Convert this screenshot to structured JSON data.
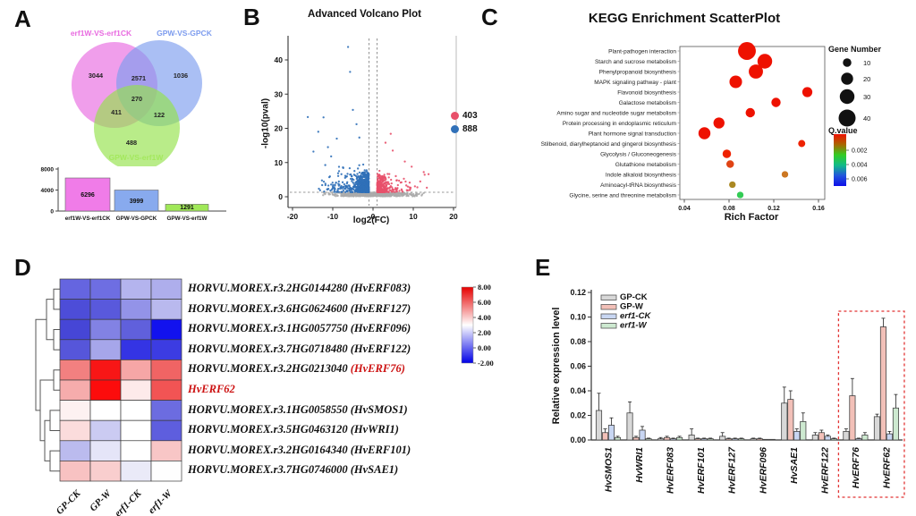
{
  "panel_labels": {
    "a": "A",
    "b": "B",
    "c": "C",
    "d": "D",
    "e": "E"
  },
  "chart_data": [
    {
      "id": "A-venn",
      "type": "venn",
      "sets": [
        {
          "name": "erf1W-VS-erf1CK",
          "color": "#e86ae0"
        },
        {
          "name": "GPW-VS-GPCK",
          "color": "#7d9cee"
        },
        {
          "name": "GPW-VS-erf1W",
          "color": "#93e24a"
        }
      ],
      "regions": [
        {
          "sets": [
            "erf1W-VS-erf1CK"
          ],
          "value": 3044
        },
        {
          "sets": [
            "erf1W-VS-erf1CK",
            "GPW-VS-GPCK"
          ],
          "value": 2571
        },
        {
          "sets": [
            "GPW-VS-GPCK"
          ],
          "value": 1036
        },
        {
          "sets": [
            "erf1W-VS-erf1CK",
            "GPW-VS-GPCK",
            "GPW-VS-erf1W"
          ],
          "value": 270
        },
        {
          "sets": [
            "erf1W-VS-erf1CK",
            "GPW-VS-erf1W"
          ],
          "value": 411
        },
        {
          "sets": [
            "GPW-VS-GPCK",
            "GPW-VS-erf1W"
          ],
          "value": 122
        },
        {
          "sets": [
            "GPW-VS-erf1W"
          ],
          "value": 488
        }
      ]
    },
    {
      "id": "A-bar",
      "type": "bar",
      "categories": [
        "erf1W-VS-erf1CK",
        "GPW-VS-GPCK",
        "GPW-VS-erf1W"
      ],
      "values": [
        6296,
        3999,
        1291
      ],
      "colors": [
        "#f07ce8",
        "#88aaee",
        "#a0e858"
      ],
      "yticks": [
        0,
        4000,
        8000
      ],
      "ylim": [
        0,
        8000
      ]
    },
    {
      "id": "B-volcano",
      "type": "scatter",
      "title": "Advanced Volcano Plot",
      "xlabel": "log2(FC)",
      "ylabel": "-log10(pval)",
      "xlim": [
        -22,
        22
      ],
      "ylim": [
        0,
        46
      ],
      "xticks": [
        -20,
        -10,
        0,
        10,
        20
      ],
      "yticks": [
        0,
        10,
        20,
        30,
        40
      ],
      "thresholds": {
        "vlines": [
          -1,
          1
        ],
        "hline": 1.3
      },
      "legend": [
        {
          "label": "403",
          "color": "#e8506a",
          "count": 403
        },
        {
          "label": "888",
          "color": "#3070b8",
          "count": 888
        }
      ],
      "gray_color": "#ababab",
      "up_count": 403,
      "down_count": 888
    },
    {
      "id": "C-kegg",
      "type": "scatter",
      "title": "KEGG Enrichment ScatterPlot",
      "xlabel": "Rich Factor",
      "xticks": [
        0.04,
        0.08,
        0.12,
        0.16
      ],
      "xlim": [
        0.03,
        0.17
      ],
      "size_legend": {
        "title": "Gene Number",
        "values": [
          10,
          20,
          30,
          40
        ]
      },
      "color_legend": {
        "title": "Q.value",
        "ticks": [
          0.002,
          0.004,
          0.006
        ],
        "gradient": [
          "#ee1100",
          "#aa6600",
          "#33cc22",
          "#11bb88",
          "#2255dd",
          "#0f0fe8"
        ]
      },
      "pathways": [
        {
          "name": "Plant-pathogen interaction",
          "rich_factor": 0.096,
          "gene_number": 44,
          "color": "#ee1100"
        },
        {
          "name": "Starch and sucrose metabolism",
          "rich_factor": 0.112,
          "gene_number": 30,
          "color": "#ee1100"
        },
        {
          "name": "Phenylpropanoid biosynthesis",
          "rich_factor": 0.104,
          "gene_number": 28,
          "color": "#ee1100"
        },
        {
          "name": "MAPK signaling pathway - plant",
          "rich_factor": 0.086,
          "gene_number": 22,
          "color": "#ee1100"
        },
        {
          "name": "Flavonoid biosynthesis",
          "rich_factor": 0.15,
          "gene_number": 14,
          "color": "#ee1100"
        },
        {
          "name": "Galactose metabolism",
          "rich_factor": 0.122,
          "gene_number": 12,
          "color": "#ee1100"
        },
        {
          "name": "Amino sugar and nucleotide sugar metabolism",
          "rich_factor": 0.099,
          "gene_number": 12,
          "color": "#ee1100"
        },
        {
          "name": "Protein processing in endoplasmic reticulum",
          "rich_factor": 0.071,
          "gene_number": 17,
          "color": "#ee1100"
        },
        {
          "name": "Plant hormone signal transduction",
          "rich_factor": 0.058,
          "gene_number": 20,
          "color": "#ee1100"
        },
        {
          "name": "Stilbenoid, diarylheptanoid and gingerol biosynthesis",
          "rich_factor": 0.145,
          "gene_number": 7,
          "color": "#ee2200"
        },
        {
          "name": "Glycolysis / Gluconeogenesis",
          "rich_factor": 0.078,
          "gene_number": 10,
          "color": "#ee2200"
        },
        {
          "name": "Glutathione metabolism",
          "rich_factor": 0.081,
          "gene_number": 8,
          "color": "#e04414"
        },
        {
          "name": "Indole alkaloid biosynthesis",
          "rich_factor": 0.13,
          "gene_number": 6,
          "color": "#cc7722"
        },
        {
          "name": "Aminoacyl-tRNA biosynthesis",
          "rich_factor": 0.083,
          "gene_number": 6,
          "color": "#aa8822"
        },
        {
          "name": "Glycine, serine and threonine metabolism",
          "rich_factor": 0.09,
          "gene_number": 6,
          "color": "#33cc55"
        }
      ]
    },
    {
      "id": "D-heatmap",
      "type": "heatmap",
      "columns": [
        "GP-CK",
        "GP-W",
        "erf1-CK",
        "erf1-W"
      ],
      "rows": [
        {
          "id": "HORVU.MOREX.r3.2HG0144280",
          "gene": "HvERF083",
          "red": false
        },
        {
          "id": "HORVU.MOREX.r3.6HG0624600",
          "gene": "HvERF127",
          "red": false
        },
        {
          "id": "HORVU.MOREX.r3.1HG0057750",
          "gene": "HvERF096",
          "red": false
        },
        {
          "id": "HORVU.MOREX.r3.7HG0718480",
          "gene": "HvERF122",
          "red": false
        },
        {
          "id": "HORVU.MOREX.r3.2HG0213040",
          "gene": "HvERF76",
          "red": true
        },
        {
          "id": "",
          "gene": "HvERF62",
          "red": true
        },
        {
          "id": "HORVU.MOREX.r3.1HG0058550",
          "gene": "HvSMOS1",
          "red": false
        },
        {
          "id": "HORVU.MOREX.r3.5HG0463120",
          "gene": "HvWRI1",
          "red": false
        },
        {
          "id": "HORVU.MOREX.r3.2HG0164340",
          "gene": "HvERF101",
          "red": false
        },
        {
          "id": "HORVU.MOREX.r3.7HG0746000",
          "gene": "HvSAE1",
          "red": false
        }
      ],
      "cell_colors": [
        [
          "#6565e0",
          "#6e6ee2",
          "#b4b4ee",
          "#aeaeec"
        ],
        [
          "#4d4dd8",
          "#5959dc",
          "#9393e8",
          "#b9b9ee"
        ],
        [
          "#4646d6",
          "#8282e4",
          "#6060dc",
          "#1212ee"
        ],
        [
          "#5656da",
          "#a6a6ea",
          "#3434e4",
          "#3c3ce2"
        ],
        [
          "#f28080",
          "#f81616",
          "#f6a6a6",
          "#f06464"
        ],
        [
          "#f6acac",
          "#fc0c0c",
          "#fdeaea",
          "#f25454"
        ],
        [
          "#fdf1f1",
          "#ffffff",
          "#ffffff",
          "#6c6ce0"
        ],
        [
          "#fbdcdc",
          "#cbcbf2",
          "#ffffff",
          "#5e5ede"
        ],
        [
          "#bbbbee",
          "#e5e5f8",
          "#ffffff",
          "#f8c6c6"
        ],
        [
          "#f8c2c2",
          "#f9cece",
          "#eaeaf8",
          "#fefefe"
        ]
      ],
      "values_est": [
        [
          0.0,
          0.2,
          1.5,
          1.4
        ],
        [
          -0.5,
          -0.3,
          0.9,
          1.6
        ],
        [
          -0.6,
          0.6,
          -0.2,
          -1.9
        ],
        [
          -0.4,
          1.2,
          -1.2,
          -1.1
        ],
        [
          5.5,
          7.7,
          4.7,
          6.0
        ],
        [
          4.6,
          7.9,
          3.4,
          6.2
        ],
        [
          3.2,
          3.0,
          3.0,
          0.1
        ],
        [
          3.7,
          1.9,
          3.0,
          -0.2
        ],
        [
          1.6,
          2.4,
          3.0,
          4.1
        ],
        [
          4.2,
          4.0,
          2.6,
          3.0
        ]
      ],
      "colorbar_ticks": [
        "8.00",
        "6.00",
        "4.00",
        "2.00",
        "0.00",
        "-2.00"
      ],
      "colorbar_range": [
        8,
        -2
      ]
    },
    {
      "id": "E-bars",
      "type": "bar",
      "ylabel": "Relative expression level",
      "yticks": [
        "0.00",
        "0.02",
        "0.04",
        "0.06",
        "0.08",
        "0.10",
        "0.12"
      ],
      "ylim": [
        0,
        0.12
      ],
      "categories": [
        "HvSMOS1",
        "HvWRI1",
        "HvERF083",
        "HvERF101",
        "HvERF127",
        "HvERF096",
        "HvSAE1",
        "HvERF122",
        "HvERF76",
        "HvERF62"
      ],
      "series": [
        {
          "name": "GP-CK",
          "italic": false,
          "fill": "#d8d8d8",
          "stroke": "#444444",
          "values": [
            0.024,
            0.022,
            0.001,
            0.004,
            0.003,
            0.001,
            0.03,
            0.004,
            0.007,
            0.019
          ],
          "errors": [
            0.014,
            0.009,
            0.001,
            0.005,
            0.003,
            0.0005,
            0.013,
            0.002,
            0.002,
            0.002
          ]
        },
        {
          "name": "GP-W",
          "italic": false,
          "fill": "#f2c0b8",
          "stroke": "#444444",
          "values": [
            0.006,
            0.002,
            0.002,
            0.001,
            0.001,
            0.001,
            0.033,
            0.006,
            0.036,
            0.092
          ],
          "errors": [
            0.003,
            0.001,
            0.001,
            0.0005,
            0.0005,
            0.0005,
            0.007,
            0.002,
            0.014,
            0.007
          ]
        },
        {
          "name": "erf1-CK",
          "italic": true,
          "fill": "#c8d6f2",
          "stroke": "#444444",
          "values": [
            0.012,
            0.008,
            0.001,
            0.001,
            0.001,
            0.0005,
            0.007,
            0.003,
            0.001,
            0.005
          ],
          "errors": [
            0.006,
            0.003,
            0.0005,
            0.0005,
            0.0005,
            0.0003,
            0.002,
            0.001,
            0.0005,
            0.002
          ]
        },
        {
          "name": "erf1-W",
          "italic": true,
          "fill": "#cde9d0",
          "stroke": "#444444",
          "values": [
            0.002,
            0.001,
            0.002,
            0.001,
            0.001,
            0.0005,
            0.015,
            0.001,
            0.004,
            0.026
          ],
          "errors": [
            0.001,
            0.0005,
            0.001,
            0.0005,
            0.0005,
            0.0003,
            0.007,
            0.0005,
            0.002,
            0.011
          ]
        }
      ],
      "highlight_box": {
        "from": "HvERF76",
        "to": "HvERF62",
        "color": "#e23333"
      }
    }
  ]
}
